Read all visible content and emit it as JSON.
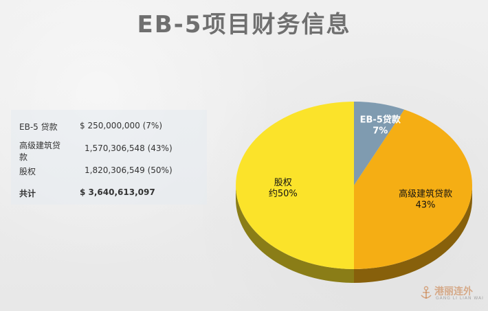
{
  "title": "EB-5项目财务信息",
  "table": {
    "rows": [
      {
        "label": "EB-5 贷款",
        "value": "$   250,000,000  (7%)",
        "bold": false
      },
      {
        "label_line1": "高级建筑贷",
        "label_line2": "款",
        "value": "1,570,306,548 (43%)",
        "bold": false
      },
      {
        "label": "股权",
        "value": "1,820,306,549 (50%)",
        "bold": false
      },
      {
        "label": "共计",
        "value": "$ 3,640,613,097",
        "bold": true
      }
    ]
  },
  "chart_data": {
    "type": "pie",
    "title": "",
    "slices": [
      {
        "label_line1": "EB-5贷款",
        "label_line2": "7%",
        "value": 7,
        "color": "#7f9bb0",
        "text_color": "#ffffff"
      },
      {
        "label_line1": "高级建筑贷款",
        "label_line2": "43%",
        "value": 43,
        "color": "#f5ae14",
        "text_color": "#111111"
      },
      {
        "label_line1": "股权",
        "label_line2": "约50%",
        "value": 50,
        "color": "#fbe32a",
        "text_color": "#111111"
      }
    ],
    "style": "3d-tilted"
  },
  "watermark": {
    "text": "港丽连外",
    "sub": "GANG LI LIAN WAI"
  }
}
